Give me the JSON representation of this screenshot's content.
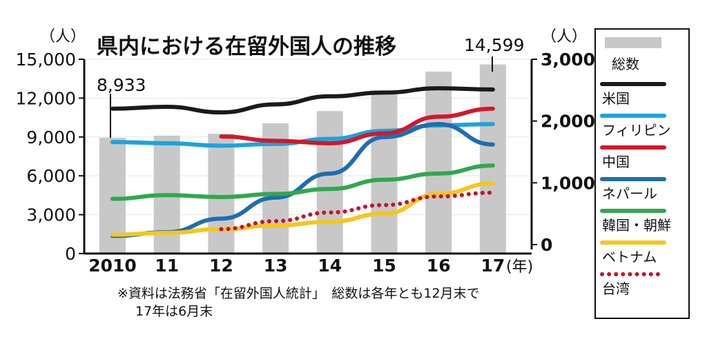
{
  "chart_data": {
    "type": "bar+line",
    "title": "県内における在留外国人の推移",
    "categories": [
      "2010",
      "11",
      "12",
      "13",
      "14",
      "15",
      "16",
      "17"
    ],
    "x_unit": "(年)",
    "left_axis": {
      "unit": "（人）",
      "ylim": [
        0,
        15000
      ],
      "ticks": [
        "0",
        "3,000",
        "6,000",
        "9,000",
        "12,000",
        "15,000"
      ]
    },
    "right_axis": {
      "unit": "（人）",
      "ylim": [
        0,
        3000
      ],
      "ticks": [
        "0",
        "1,000",
        "2,000",
        "3,000"
      ]
    },
    "bar_series": {
      "name": "総数",
      "axis": "left",
      "color": "#c8c8c8",
      "values": [
        8933,
        9100,
        9250,
        10050,
        11000,
        12600,
        14050,
        14599
      ]
    },
    "annotations": {
      "first": "8,933",
      "last": "14,599"
    },
    "line_series": [
      {
        "name": "米国",
        "axis": "right",
        "color": "#1a1a1a",
        "style": "solid",
        "values": [
          2200,
          2230,
          2140,
          2270,
          2400,
          2460,
          2530,
          2510
        ]
      },
      {
        "name": "フィリピン",
        "axis": "right",
        "color": "#1aa3e0",
        "style": "solid",
        "values": [
          1660,
          1640,
          1600,
          1630,
          1710,
          1840,
          1930,
          1950
        ]
      },
      {
        "name": "中国",
        "axis": "right",
        "color": "#d4172a",
        "style": "solid",
        "values": [
          null,
          null,
          1750,
          1680,
          1640,
          1800,
          2070,
          2200
        ]
      },
      {
        "name": "ネパール",
        "axis": "right",
        "color": "#1f6db0",
        "style": "solid",
        "values": [
          140,
          200,
          420,
          760,
          1150,
          1740,
          1950,
          1620
        ]
      },
      {
        "name": "韓国・朝鮮",
        "axis": "right",
        "color": "#2fa84f",
        "style": "solid",
        "values": [
          740,
          800,
          770,
          820,
          900,
          1050,
          1150,
          1280
        ]
      },
      {
        "name": "ベトナム",
        "axis": "right",
        "color": "#f5c61e",
        "style": "solid",
        "values": [
          160,
          190,
          250,
          310,
          370,
          500,
          820,
          990
        ]
      },
      {
        "name": "台湾",
        "axis": "right",
        "color": "#c8102e",
        "style": "dotted",
        "values": [
          null,
          null,
          250,
          380,
          520,
          640,
          780,
          840
        ]
      }
    ],
    "notes": [
      "※資料は法務省「在留外国人統計」　総数は各年とも12月末で",
      "17年は6月末"
    ],
    "legend_position": "right"
  }
}
